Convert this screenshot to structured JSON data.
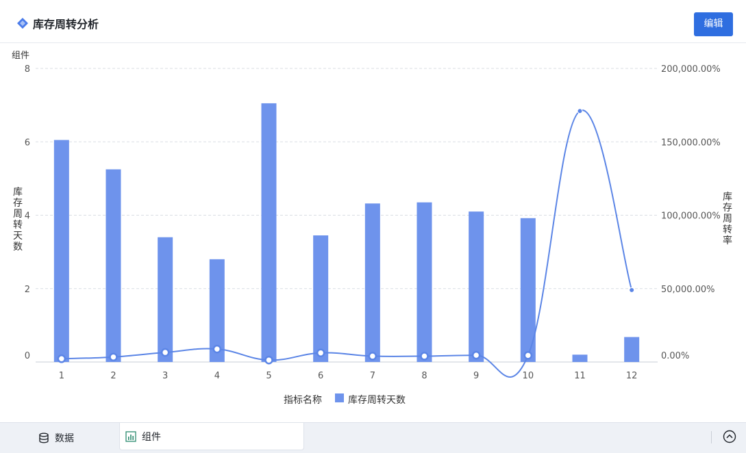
{
  "header": {
    "title": "库存周转分析",
    "edit_label": "编辑"
  },
  "widget_label": "组件",
  "footer": {
    "tabs": [
      {
        "label": "数据",
        "icon": "database-icon"
      },
      {
        "label": "组件",
        "icon": "chart-icon"
      }
    ]
  },
  "colors": {
    "bar": "#6e93ec",
    "line": "#5b85e6",
    "accent": "#2f6ee0",
    "grid": "#d9dde3"
  },
  "chart_data": {
    "type": "bar",
    "categories": [
      "1",
      "2",
      "3",
      "4",
      "5",
      "6",
      "7",
      "8",
      "9",
      "10",
      "11",
      "12"
    ],
    "xlabel": "指标名称",
    "ylabel": "库存周转天数",
    "y2label": "库存周转率",
    "ylim": [
      0,
      8
    ],
    "y2lim": [
      0,
      200000
    ],
    "yticks": [
      "0",
      "2",
      "4",
      "6",
      "8"
    ],
    "y2ticks": [
      "0.00%",
      "50,000.00%",
      "100,000.00%",
      "150,000.00%",
      "200,000.00%"
    ],
    "legend": "bottom",
    "grid": true,
    "series": [
      {
        "name": "库存周转天数",
        "type": "bar",
        "axis": "left",
        "values": [
          6.05,
          5.25,
          3.4,
          2.8,
          7.05,
          3.45,
          4.32,
          4.35,
          4.1,
          3.92,
          0.2,
          0.68
        ]
      },
      {
        "type": "line",
        "axis": "right",
        "values": [
          2200,
          3400,
          6500,
          8800,
          1300,
          6200,
          4000,
          4000,
          4600,
          4500,
          171000,
          49000
        ]
      }
    ]
  }
}
